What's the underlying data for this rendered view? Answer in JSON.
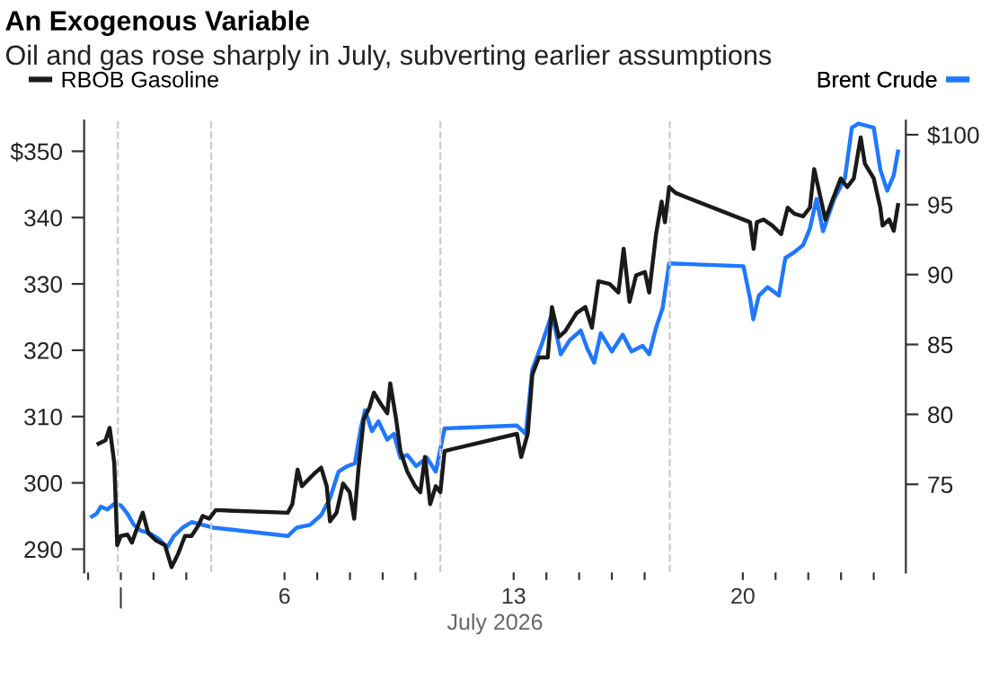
{
  "chart_data": {
    "type": "line",
    "title": "An Exogenous Variable",
    "subtitle": "Oil and gas rose sharply in July, subverting earlier assumptions",
    "xlabel": "July 2026",
    "xlim": [
      -0.12,
      24.98
    ],
    "xticks": [
      {
        "value": 0,
        "label": null
      },
      {
        "value": 1,
        "label": "|"
      },
      {
        "value": 2,
        "label": null
      },
      {
        "value": 3,
        "label": null
      },
      6,
      {
        "value": 7,
        "label": null
      },
      {
        "value": 8,
        "label": null
      },
      {
        "value": 9,
        "label": null
      },
      {
        "value": 10,
        "label": null
      },
      13,
      {
        "value": 14,
        "label": null
      },
      {
        "value": 15,
        "label": null
      },
      {
        "value": 16,
        "label": null
      },
      {
        "value": 17,
        "label": null
      },
      20,
      {
        "value": 21,
        "label": null
      },
      {
        "value": 22,
        "label": null
      },
      {
        "value": 23,
        "label": null
      },
      {
        "value": 24,
        "label": null
      }
    ],
    "ylim": [
      286.5,
      354.6
    ],
    "yticks": [
      290,
      300,
      310,
      320,
      330,
      340,
      {
        "value": 350,
        "label": "$350"
      }
    ],
    "y2lim": [
      68.7,
      101
    ],
    "y2ticks": [
      75,
      80,
      85,
      90,
      95,
      {
        "value": 100,
        "label": "$100"
      }
    ],
    "grid": false,
    "legend": "top",
    "marker": "none",
    "line_style": "solid",
    "ref_lines": [
      {
        "axis": "x",
        "value": 0.91,
        "color": "#cccccc",
        "line_style": "dashed"
      },
      {
        "axis": "x",
        "value": 3.76,
        "color": "#cccccc",
        "line_style": "dashed"
      },
      {
        "axis": "x",
        "value": 10.76,
        "color": "#cccccc",
        "line_style": "dashed"
      },
      {
        "axis": "x",
        "value": 17.77,
        "color": "#cccccc",
        "line_style": "dashed"
      }
    ],
    "series": [
      {
        "name": "RBOB Gasoline",
        "color": "#1a1a1a",
        "axis": "y",
        "x": [
          0.32,
          0.53,
          0.66,
          0.8,
          0.89,
          1.0,
          1.2,
          1.34,
          1.47,
          1.67,
          1.84,
          2.08,
          2.35,
          2.55,
          2.75,
          2.96,
          3.16,
          3.36,
          3.5,
          3.7,
          3.9,
          6.1,
          6.24,
          6.4,
          6.53,
          6.71,
          6.91,
          7.12,
          7.29,
          7.39,
          7.59,
          7.79,
          7.99,
          8.13,
          8.26,
          8.42,
          8.6,
          8.73,
          8.94,
          9.14,
          9.23,
          9.41,
          9.54,
          9.75,
          9.99,
          10.15,
          10.29,
          10.45,
          10.62,
          10.76,
          10.89,
          13.1,
          13.23,
          13.43,
          13.57,
          13.77,
          14.04,
          14.17,
          14.38,
          14.58,
          14.92,
          15.19,
          15.39,
          15.59,
          15.93,
          16.2,
          16.36,
          16.54,
          16.74,
          17.01,
          17.14,
          17.35,
          17.52,
          17.62,
          17.75,
          17.95,
          20.22,
          20.33,
          20.43,
          20.63,
          20.9,
          21.17,
          21.37,
          21.57,
          21.84,
          22.05,
          22.18,
          22.32,
          22.52,
          22.72,
          22.99,
          23.19,
          23.39,
          23.6,
          23.73,
          24.0,
          24.2,
          24.27,
          24.47,
          24.61,
          24.74
        ],
        "values": [
          305.9,
          306.4,
          308.3,
          303,
          290.6,
          292,
          292.2,
          291,
          292.8,
          295.5,
          292.4,
          291.3,
          290.6,
          287.3,
          289.3,
          292,
          292,
          293.5,
          295,
          294.6,
          295.9,
          295.5,
          296.8,
          302,
          299.5,
          300.4,
          301.4,
          302.3,
          299.5,
          294.2,
          295.5,
          299.9,
          298.6,
          294.6,
          302.1,
          309.6,
          311.4,
          313.6,
          311.9,
          310.5,
          315,
          309.6,
          304.8,
          301.7,
          299.5,
          298.6,
          303.9,
          296.8,
          299.5,
          298.6,
          304.8,
          307.4,
          303.9,
          307.4,
          316.3,
          318.9,
          318.9,
          326.5,
          322,
          322.9,
          325.6,
          326.5,
          323.4,
          330.4,
          330,
          328.7,
          335.3,
          327.3,
          331.3,
          331.8,
          328.7,
          337.5,
          342.4,
          339.3,
          344.6,
          343.7,
          339.3,
          335.3,
          339.3,
          339.7,
          338.8,
          337.5,
          341.5,
          340.6,
          340.2,
          341.5,
          347.3,
          344.2,
          339.7,
          342.4,
          345.9,
          344.6,
          345.9,
          352.1,
          348.1,
          345.9,
          341.5,
          338.8,
          339.7,
          338,
          341.9
        ]
      },
      {
        "name": "Brent Crude",
        "color": "#1f78ff",
        "axis": "y2",
        "x": [
          0.12,
          0.26,
          0.39,
          0.59,
          0.8,
          1.0,
          1.2,
          1.4,
          1.6,
          1.88,
          2.15,
          2.42,
          2.62,
          2.89,
          3.16,
          3.5,
          3.83,
          6.1,
          6.37,
          6.78,
          7.12,
          7.39,
          7.65,
          7.92,
          8.15,
          8.33,
          8.46,
          8.67,
          8.87,
          9.14,
          9.34,
          9.54,
          9.75,
          10.02,
          10.35,
          10.62,
          10.89,
          13.1,
          13.37,
          13.57,
          13.84,
          14.17,
          14.44,
          14.71,
          15.05,
          15.25,
          15.46,
          15.66,
          16.0,
          16.33,
          16.6,
          16.94,
          17.14,
          17.35,
          17.55,
          17.75,
          20.02,
          20.22,
          20.32,
          20.49,
          20.76,
          21.1,
          21.3,
          21.57,
          21.84,
          22.05,
          22.25,
          22.45,
          22.79,
          23.12,
          23.33,
          23.53,
          24.0,
          24.2,
          24.41,
          24.61,
          24.74
        ],
        "values": [
          72.7,
          72.9,
          73.4,
          73.2,
          73.6,
          73.5,
          72.9,
          72.1,
          71.7,
          71.5,
          71.1,
          70.5,
          71.3,
          71.9,
          72.3,
          72.1,
          71.9,
          71.3,
          71.9,
          72.1,
          72.8,
          74,
          75.9,
          76.3,
          76.5,
          79,
          80.3,
          78.8,
          79.5,
          78.2,
          78.6,
          76.9,
          77.1,
          76.3,
          76.9,
          75.9,
          79,
          79.2,
          78.6,
          83.2,
          84.9,
          87.2,
          84.3,
          85.3,
          86,
          84.7,
          83.7,
          85.8,
          84.5,
          85.7,
          84.5,
          84.9,
          84.3,
          86.2,
          87.6,
          90.8,
          90.6,
          88.3,
          86.8,
          88.5,
          89.1,
          88.5,
          91.2,
          91.6,
          92.1,
          93.3,
          95.4,
          93.1,
          95.4,
          96.9,
          100.5,
          100.8,
          100.5,
          97.5,
          96,
          97.1,
          98.8
        ]
      }
    ]
  }
}
